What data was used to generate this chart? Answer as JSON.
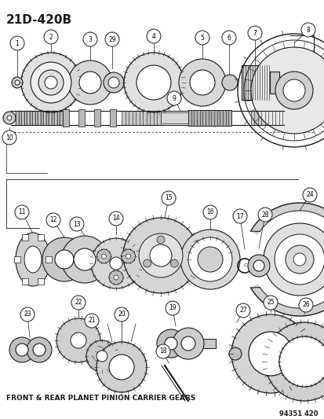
{
  "title": "21D-420B",
  "footer_label": "FRONT & REAR PLANET PINION CARRIER GEARS",
  "part_number": "94351 420",
  "bg_color": "#ffffff",
  "line_color": "#1a1a1a",
  "title_fontsize": 11,
  "footer_fontsize": 6.5,
  "part_num_fontsize": 6,
  "fig_width": 4.14,
  "fig_height": 5.33,
  "dpi": 100
}
